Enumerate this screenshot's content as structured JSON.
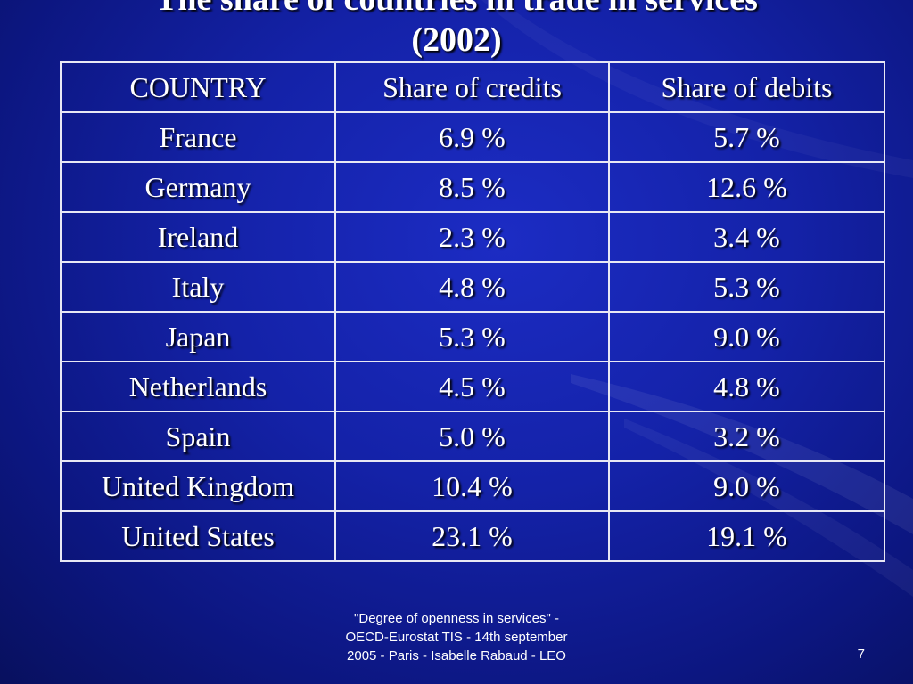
{
  "slide": {
    "title_lines": [
      "The share of countries in trade in services",
      "(2002)"
    ],
    "colors": {
      "background": "#1422a8",
      "text": "#ffffff",
      "table_border": "#e8e8f4"
    }
  },
  "table": {
    "headers": [
      "COUNTRY",
      "Share of credits",
      "Share of debits"
    ],
    "rows": [
      [
        "France",
        "6.9 %",
        "5.7 %"
      ],
      [
        "Germany",
        "8.5 %",
        "12.6 %"
      ],
      [
        "Ireland",
        "2.3 %",
        "3.4 %"
      ],
      [
        "Italy",
        "4.8 %",
        "5.3 %"
      ],
      [
        "Japan",
        "5.3 %",
        "9.0 %"
      ],
      [
        "Netherlands",
        "4.5 %",
        "4.8 %"
      ],
      [
        "Spain",
        "5.0 %",
        "3.2 %"
      ],
      [
        "United Kingdom",
        "10.4 %",
        "9.0 %"
      ],
      [
        "United States",
        "23.1 %",
        "19.1 %"
      ]
    ]
  },
  "footer": {
    "lines": [
      "\"Degree of openness in services\" -",
      "OECD-Eurostat  TIS - 14th september",
      "2005 - Paris - Isabelle Rabaud  - LEO"
    ],
    "page_number": "7"
  }
}
